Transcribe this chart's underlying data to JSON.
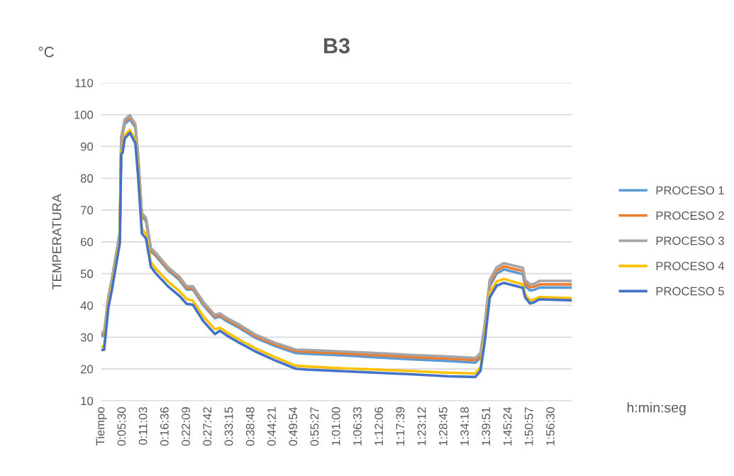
{
  "chart_data": {
    "type": "line",
    "title": "B3",
    "ylabel": "TEMPERATURA",
    "xlabel": "h:min:seg",
    "annotations": [
      "°C"
    ],
    "x": [
      0,
      0.012,
      0.031,
      0.046,
      0.061,
      0.08,
      0.086,
      0.092,
      0.101,
      0.123,
      0.147,
      0.159,
      0.175,
      0.193,
      0.214,
      0.236,
      0.288,
      0.337,
      0.368,
      0.395,
      0.441,
      0.49,
      0.512,
      0.542,
      0.594,
      0.665,
      0.747,
      0.839,
      0.888,
      1.041,
      1.195,
      1.348,
      1.501,
      1.614,
      1.636,
      1.654,
      1.676,
      1.706,
      1.737,
      1.819,
      1.829,
      1.85,
      1.868,
      1.89,
      2.028
    ],
    "series": [
      {
        "name": "PROCESO 1",
        "color": "#5b9bd5",
        "values": [
          30.5,
          30.5,
          42,
          47.5,
          54,
          62,
          92,
          94,
          97,
          98.5,
          96,
          86,
          68,
          66.5,
          57,
          55.5,
          51,
          48,
          45,
          45,
          40,
          36,
          36.5,
          35,
          33,
          29.8,
          27.3,
          25,
          24.8,
          24.3,
          23.6,
          23,
          22.5,
          22,
          23.5,
          32,
          46,
          50,
          51.3,
          49.8,
          46,
          44.7,
          44.9,
          45.6,
          45.6
        ]
      },
      {
        "name": "PROCESO 2",
        "color": "#ed7d31",
        "values": [
          31,
          31,
          42.5,
          48,
          54.5,
          62.5,
          92.5,
          94.5,
          97.8,
          99.2,
          96.5,
          86.5,
          68.5,
          67,
          57.5,
          56,
          51.5,
          48.5,
          45.5,
          45.5,
          40.5,
          36.5,
          37,
          35.5,
          33.5,
          30.3,
          27.8,
          25.6,
          25.4,
          24.9,
          24.3,
          23.7,
          23.2,
          22.8,
          24.3,
          33,
          47,
          51,
          52.3,
          50.8,
          47,
          45.7,
          45.9,
          46.6,
          46.6
        ]
      },
      {
        "name": "PROCESO 3",
        "color": "#a5a5a5",
        "values": [
          31.5,
          31.5,
          43,
          48.5,
          55,
          63,
          93,
          95,
          98.5,
          99.8,
          97,
          87,
          69,
          67.5,
          58,
          56.5,
          52,
          49,
          46,
          46,
          41,
          37,
          37.5,
          36,
          34,
          30.8,
          28.3,
          26.1,
          26,
          25.5,
          25,
          24.4,
          23.9,
          23.5,
          25,
          34,
          48,
          52,
          53.3,
          51.8,
          48,
          46.6,
          46.8,
          47.7,
          47.7
        ]
      },
      {
        "name": "PROCESO 4",
        "color": "#ffc000",
        "values": [
          27,
          27,
          40.5,
          46,
          52.5,
          61,
          88.5,
          89,
          93.5,
          95.2,
          92,
          82,
          64,
          62.5,
          53.5,
          51.5,
          47.5,
          44.5,
          42,
          41.5,
          36.5,
          32.5,
          33,
          31.5,
          29.3,
          26.5,
          23.8,
          21,
          20.8,
          20.2,
          19.8,
          19.3,
          18.8,
          18.6,
          20.5,
          30,
          44,
          47.5,
          48.3,
          46.6,
          43.5,
          41.5,
          41.9,
          42.6,
          42.3
        ]
      },
      {
        "name": "PROCESO 5",
        "color": "#4472c4",
        "values": [
          26,
          26,
          39.5,
          45,
          51.5,
          59.6,
          87.6,
          88,
          92.5,
          94.3,
          91,
          80.5,
          62.6,
          61,
          52.1,
          50,
          46,
          43,
          40.5,
          40.2,
          35,
          31,
          32,
          30.5,
          28.3,
          25.5,
          22.8,
          20.1,
          19.8,
          19.3,
          18.8,
          18.3,
          17.7,
          17.5,
          19.4,
          28.3,
          42.5,
          46.2,
          47.1,
          45.5,
          42.5,
          40.6,
          41,
          41.9,
          41.6
        ]
      }
    ],
    "xlim": [
      0,
      2.03
    ],
    "xticks": [
      {
        "value": 0,
        "label": "Tiempo"
      },
      {
        "value": 0.0917,
        "label": "0:05:30"
      },
      {
        "value": 0.1842,
        "label": "0:11:03"
      },
      {
        "value": 0.2767,
        "label": "0:16:36"
      },
      {
        "value": 0.3692,
        "label": "0:22:09"
      },
      {
        "value": 0.4617,
        "label": "0:27:42"
      },
      {
        "value": 0.5542,
        "label": "0:33:15"
      },
      {
        "value": 0.6467,
        "label": "0:38:48"
      },
      {
        "value": 0.7392,
        "label": "0:44:21"
      },
      {
        "value": 0.8317,
        "label": "0:49:54"
      },
      {
        "value": 0.9242,
        "label": "0:55:27"
      },
      {
        "value": 1.0167,
        "label": "1:01:00"
      },
      {
        "value": 1.1092,
        "label": "1:06:33"
      },
      {
        "value": 1.2017,
        "label": "1:12:06"
      },
      {
        "value": 1.2942,
        "label": "1:17:39"
      },
      {
        "value": 1.3867,
        "label": "1:23:12"
      },
      {
        "value": 1.4792,
        "label": "1:28:45"
      },
      {
        "value": 1.5717,
        "label": "1:34:18"
      },
      {
        "value": 1.6642,
        "label": "1:39:51"
      },
      {
        "value": 1.7567,
        "label": "1:45:24"
      },
      {
        "value": 1.8492,
        "label": "1:50:57"
      },
      {
        "value": 1.9417,
        "label": "1:56:30"
      }
    ],
    "ylim": [
      10,
      110
    ],
    "yticks": [
      10,
      20,
      30,
      40,
      50,
      60,
      70,
      80,
      90,
      100,
      110
    ],
    "grid": "y",
    "legend": "right",
    "marker": "none",
    "line_style": "solid"
  }
}
